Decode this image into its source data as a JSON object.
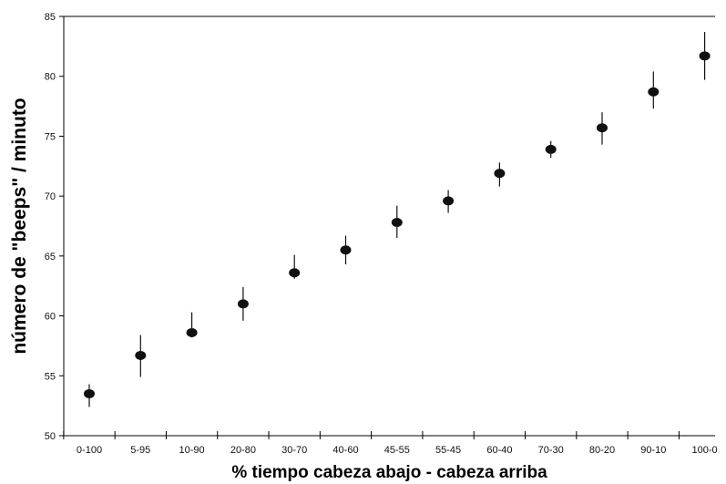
{
  "chart_data": {
    "type": "scatter",
    "title": "",
    "xlabel": "% tiempo cabeza abajo - cabeza arriba",
    "ylabel": "número de \"beeps\" / minuto",
    "ylim": [
      50,
      85
    ],
    "yticks": [
      50,
      55,
      60,
      65,
      70,
      75,
      80,
      85
    ],
    "grid": false,
    "legend": "none",
    "categories": [
      "0-100",
      "5-95",
      "10-90",
      "20-80",
      "30-70",
      "40-60",
      "45-55",
      "55-45",
      "60-40",
      "70-30",
      "80-20",
      "90-10",
      "100-0"
    ],
    "series": [
      {
        "values": [
          53.5,
          56.7,
          58.6,
          61.0,
          63.6,
          65.5,
          67.8,
          69.6,
          71.9,
          73.9,
          75.7,
          78.7,
          81.7
        ],
        "err_low": [
          52.4,
          54.9,
          58.2,
          59.6,
          63.1,
          64.3,
          66.5,
          68.6,
          70.8,
          73.2,
          74.3,
          77.3,
          79.7
        ],
        "err_high": [
          54.3,
          58.4,
          60.3,
          62.4,
          65.1,
          66.7,
          69.2,
          70.5,
          72.8,
          74.6,
          77.0,
          80.4,
          83.7
        ]
      }
    ],
    "colors": {
      "marker": "#111111",
      "axis": "#000000"
    }
  }
}
